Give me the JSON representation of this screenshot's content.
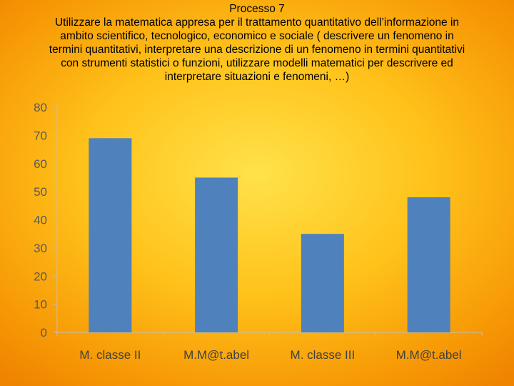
{
  "slide": {
    "heading": "Processo 7",
    "description_lines": [
      "Utilizzare la matematica appresa per il trattamento quantitativo dell’informazione in",
      "ambito scientifico, tecnologico, economico e sociale ( descrivere un fenomeno in",
      "termini quantitativi, interpretare una descrizione di un fenomeno in termini quantitativi",
      "con strumenti statistici o funzioni, utilizzare modelli matematici per descrivere ed",
      "interpretare situazioni e fenomeni, …)"
    ]
  },
  "colors": {
    "bar": "#4f81bd",
    "axis": "#bfbfbf",
    "tick_text": "#595959",
    "category_text": "#404040"
  },
  "chart_data": {
    "type": "bar",
    "categories": [
      "M. classe II",
      "M.M@t.abel",
      "M. classe III",
      "M.M@t.abel"
    ],
    "values": [
      69,
      55,
      35,
      48
    ],
    "yticks": [
      0,
      10,
      20,
      30,
      40,
      50,
      60,
      70,
      80
    ],
    "ylim": [
      0,
      80
    ],
    "grid": false,
    "legend": "none"
  }
}
